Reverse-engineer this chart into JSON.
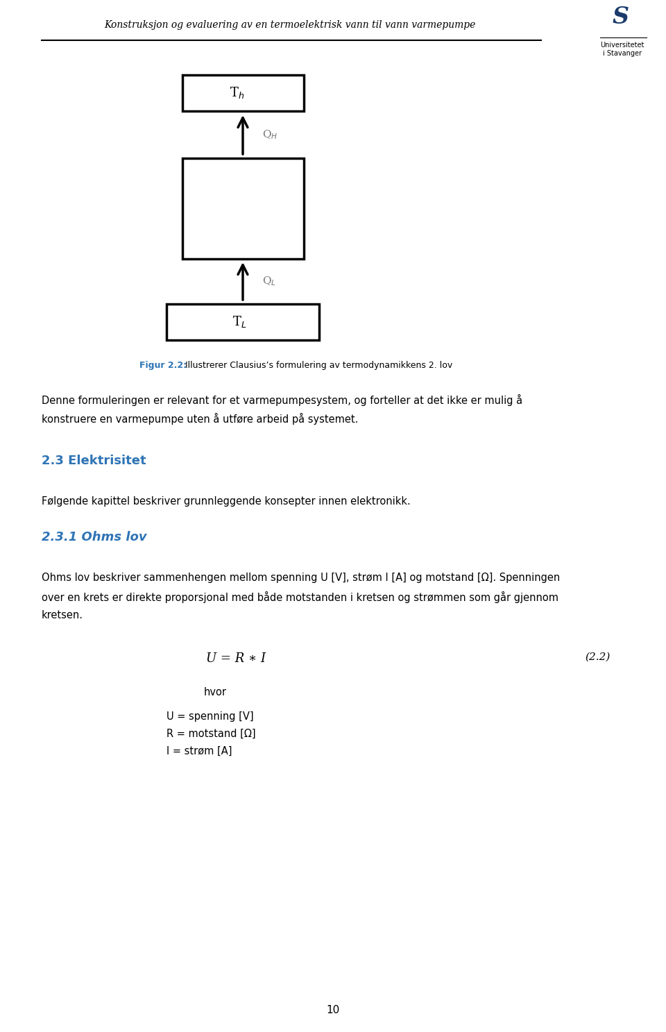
{
  "header_title": "Konstruksjon og evaluering av en termoelektrisk vann til vann varmepumpe",
  "header_color": "#000000",
  "logo_text": "Universitetet\ni Stavanger",
  "fig_caption_bold": "Figur 2.2:",
  "fig_caption_rest": " Illustrerer Clausius’s formulering av termodynamikkens 2. lov",
  "fig_caption_color": "#2e74b5",
  "body_text_1_line1": "Denne formuleringen er relevant for et varmepumpesystem, og forteller at det ikke er mulig å",
  "body_text_1_line2": "konstruere en varmepumpe uten å utføre arbeid på systemet.",
  "section_heading": "2.3 Elektrisitet",
  "section_heading_color": "#2e74b5",
  "section_text": "Følgende kapittel beskriver grunnleggende konsepter innen elektronikk.",
  "subsection_heading": "2.3.1 Ohms lov",
  "subsection_heading_color": "#2e74b5",
  "body_text_2_line1": "Ohms lov beskriver sammenhengen mellom spenning U [V], strøm I [A] og motstand [Ω]. Spenningen",
  "body_text_2_line2": "over en krets er direkte proporsjonal med både motstanden i kretsen og strømmen som går gjennom",
  "body_text_2_line3": "kretsen.",
  "formula": "U = R ∗ I",
  "formula_ref": "(2.2)",
  "formula_where": "hvor",
  "formula_line1": "U = spenning [V]",
  "formula_line2": "R = motstand [Ω]",
  "formula_line3": "I = strøm [A]",
  "page_number": "10",
  "background_color": "#ffffff",
  "text_color": "#000000",
  "Th_label": "T$_h$",
  "TL_label": "T$_L$",
  "QH_label": "Q$_H$",
  "QL_label": "Q$_L$"
}
